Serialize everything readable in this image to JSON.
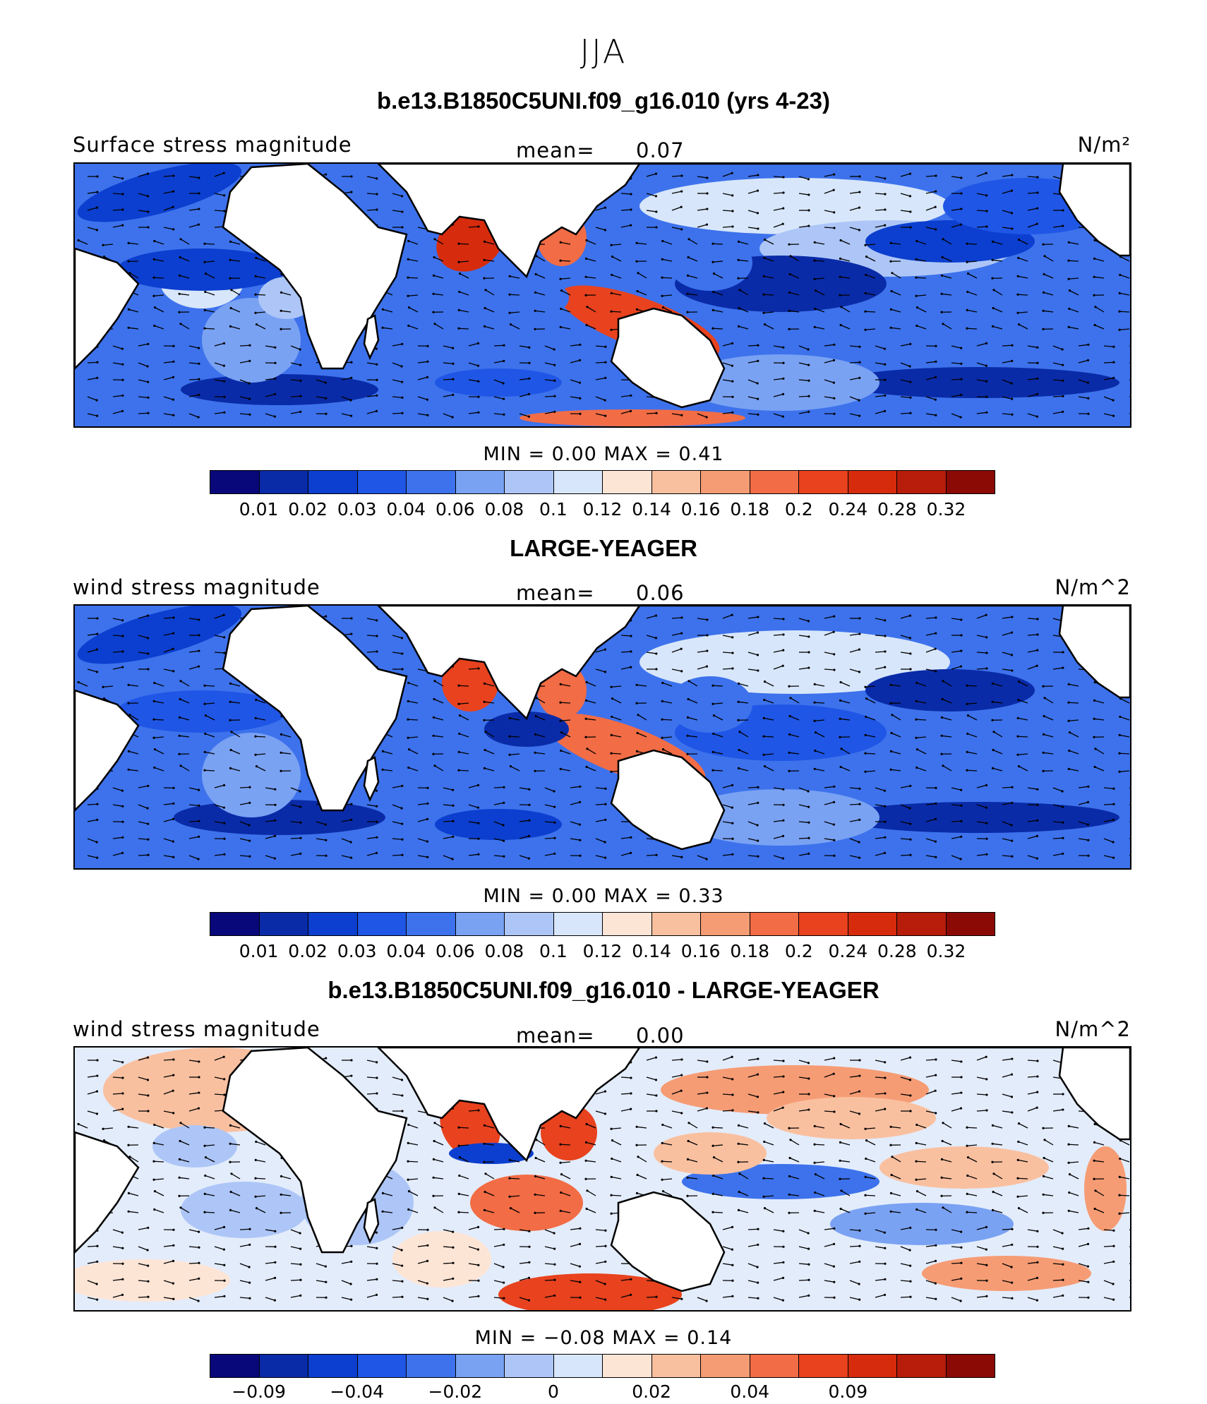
{
  "season": "JJA",
  "palette": [
    "#08087a",
    "#0a2ba8",
    "#0c3fcf",
    "#1f56e6",
    "#3d72ec",
    "#7aa2f3",
    "#adc6f7",
    "#d7e6fa",
    "#fde5d6",
    "#f9c0a0",
    "#f69c74",
    "#f26c45",
    "#e8421e",
    "#d62c0d",
    "#b81c0a",
    "#8c0a05"
  ],
  "panels": [
    {
      "title": "b.e13.B1850C5UNI.f09_g16.010 (yrs 4-23)",
      "left_label": "Surface stress magnitude",
      "mean_label": "mean=",
      "mean_value": "0.07",
      "units": "N/m²",
      "min_max_text": "MIN =    0.00  MAX =    0.41",
      "colorbar_ticks": [
        "0.01",
        "0.02",
        "0.03",
        "0.04",
        "0.06",
        "0.08",
        "0.1",
        "0.12",
        "0.14",
        "0.16",
        "0.18",
        "0.2",
        "0.24",
        "0.28",
        "0.32"
      ],
      "kind": "abs"
    },
    {
      "title": "LARGE-YEAGER",
      "left_label": "wind stress magnitude",
      "mean_label": "mean=",
      "mean_value": "0.06",
      "units": "N/m^2",
      "min_max_text": "MIN =    0.00  MAX =    0.33",
      "colorbar_ticks": [
        "0.01",
        "0.02",
        "0.03",
        "0.04",
        "0.06",
        "0.08",
        "0.1",
        "0.12",
        "0.14",
        "0.16",
        "0.18",
        "0.2",
        "0.24",
        "0.28",
        "0.32"
      ],
      "kind": "abs"
    },
    {
      "title": "b.e13.B1850C5UNI.f09_g16.010 - LARGE-YEAGER",
      "left_label": "wind stress magnitude",
      "mean_label": "mean=",
      "mean_value": "0.00",
      "units": "N/m^2",
      "min_max_text": "MIN =  −0.08  MAX =    0.14",
      "colorbar_ticks": [
        "−0.09",
        "",
        "−0.04",
        "",
        "−0.02",
        "",
        "0",
        "",
        "0.02",
        "",
        "0.04",
        "",
        "0.09",
        "",
        ""
      ],
      "kind": "diff"
    }
  ],
  "chart_data": [
    {
      "type": "heatmap",
      "title": "b.e13.B1850C5UNI.f09_g16.010 (yrs 4-23)",
      "variable": "Surface stress magnitude",
      "units": "N/m²",
      "mean": 0.07,
      "min": 0.0,
      "max": 0.41,
      "levels": [
        0.01,
        0.02,
        0.03,
        0.04,
        0.06,
        0.08,
        0.1,
        0.12,
        0.14,
        0.16,
        0.18,
        0.2,
        0.24,
        0.28,
        0.32
      ]
    },
    {
      "type": "heatmap",
      "title": "LARGE-YEAGER",
      "variable": "wind stress magnitude",
      "units": "N/m^2",
      "mean": 0.06,
      "min": 0.0,
      "max": 0.33,
      "levels": [
        0.01,
        0.02,
        0.03,
        0.04,
        0.06,
        0.08,
        0.1,
        0.12,
        0.14,
        0.16,
        0.18,
        0.2,
        0.24,
        0.28,
        0.32
      ]
    },
    {
      "type": "heatmap",
      "title": "b.e13.B1850C5UNI.f09_g16.010 - LARGE-YEAGER",
      "variable": "wind stress magnitude",
      "units": "N/m^2",
      "mean": 0.0,
      "min": -0.08,
      "max": 0.14,
      "levels": [
        -0.09,
        -0.04,
        -0.02,
        0,
        0.02,
        0.04,
        0.09
      ]
    }
  ]
}
